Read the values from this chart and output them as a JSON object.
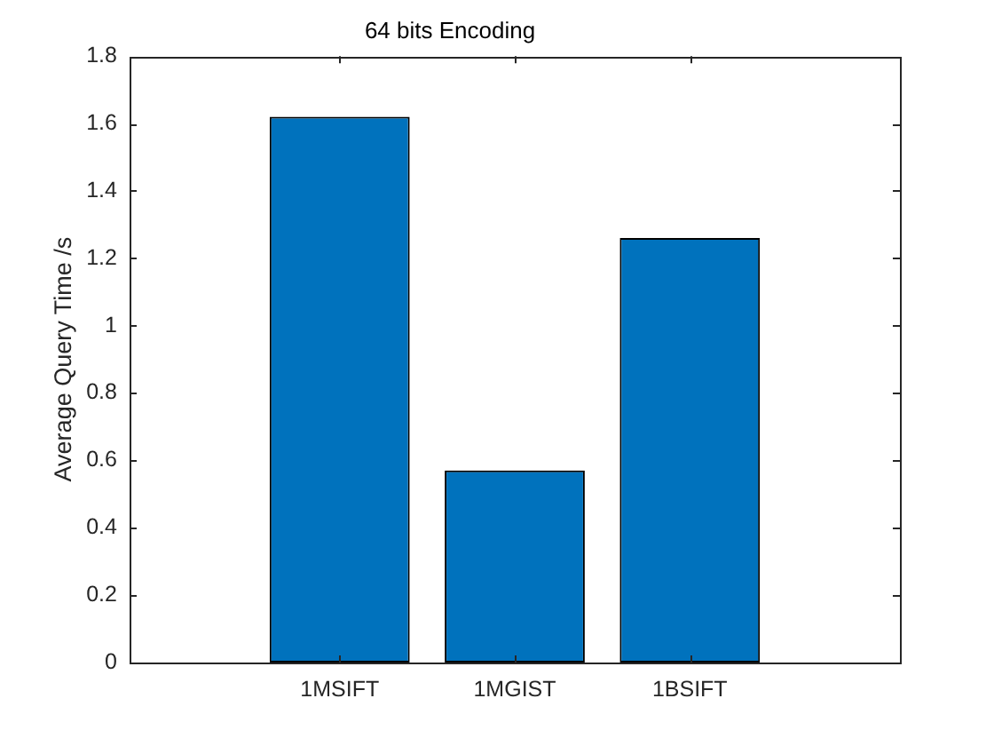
{
  "chart_data": {
    "type": "bar",
    "title": "64 bits Encoding",
    "ylabel": "Average Query Time /s",
    "categories": [
      "1MSIFT",
      "1MGIST",
      "1BSIFT"
    ],
    "values": [
      1.62,
      0.57,
      1.26
    ],
    "color": "#0072bd",
    "ylim": [
      0,
      1.8
    ],
    "yticks": [
      0,
      0.2,
      0.4,
      0.6,
      0.8,
      1,
      1.2,
      1.4,
      1.6,
      1.8
    ]
  }
}
